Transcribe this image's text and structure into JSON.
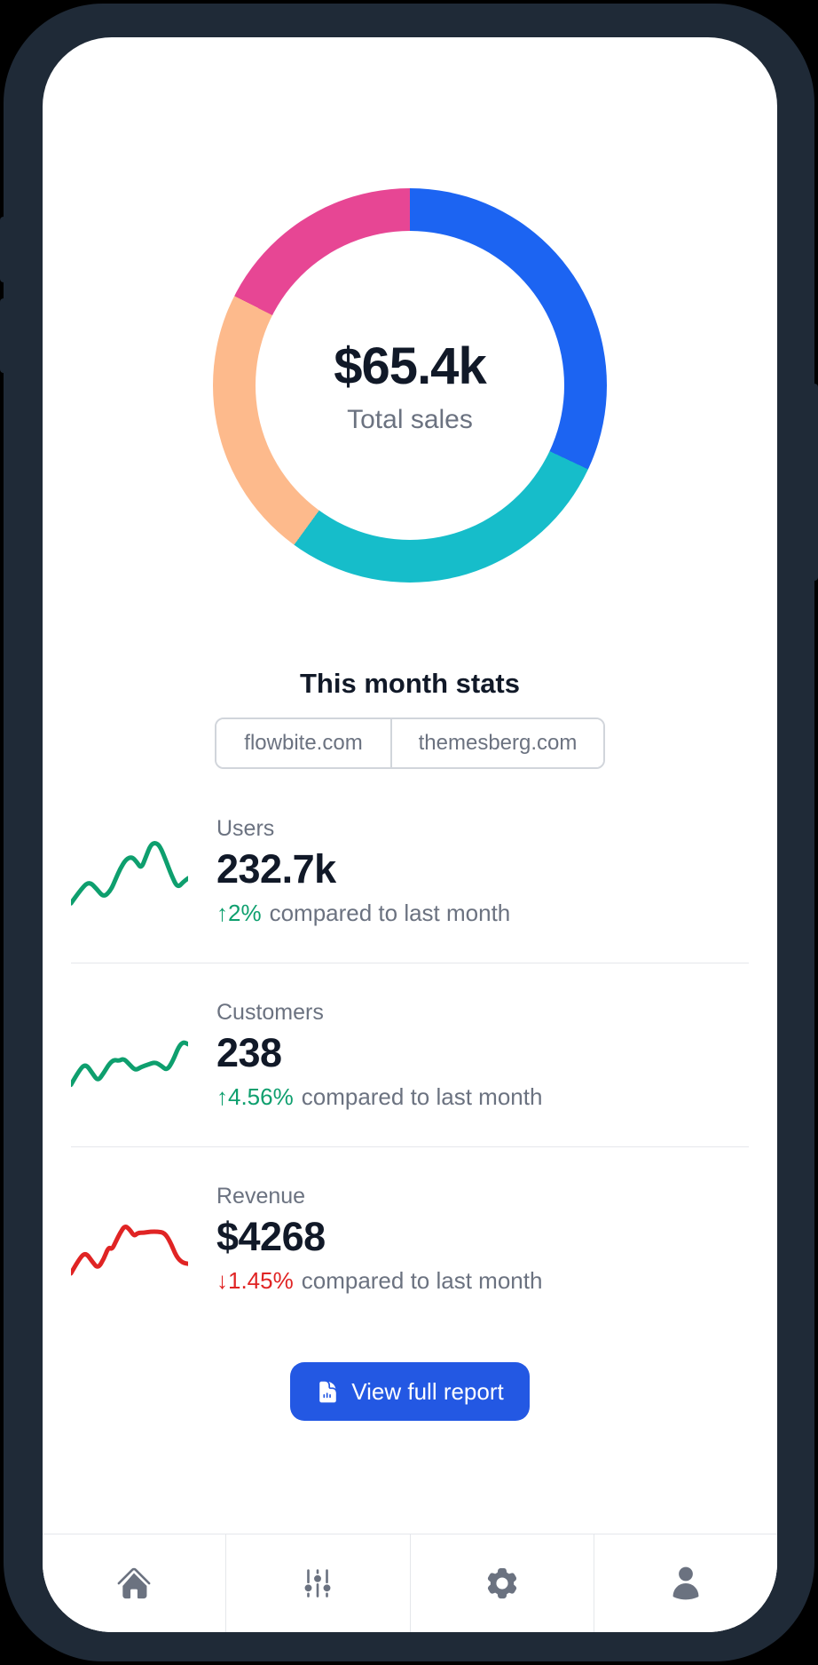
{
  "phone": {
    "frame_color": "#1F2A37",
    "screen_color": "#FFFFFF"
  },
  "donut": {
    "value": "$65.4k",
    "label": "Total sales",
    "segments": [
      {
        "name": "segment-blue",
        "color": "#1C64F2",
        "percent": 32.0
      },
      {
        "name": "segment-teal",
        "color": "#16BDCA",
        "percent": 28.0
      },
      {
        "name": "segment-orange",
        "color": "#FDBA8C",
        "percent": 22.5
      },
      {
        "name": "segment-pink",
        "color": "#E74694",
        "percent": 17.5
      }
    ]
  },
  "stats_section": {
    "title": "This month stats"
  },
  "tabs": [
    {
      "label": "flowbite.com"
    },
    {
      "label": "themesberg.com"
    }
  ],
  "stats": [
    {
      "label": "Users",
      "value": "232.7k",
      "delta_arrow": "↑",
      "delta": "2%",
      "delta_direction": "up",
      "delta_color": "#0E9F6E",
      "compare_text": "compared to last month",
      "line_color": "#0E9F6E",
      "sparkline": [
        [
          0,
          62
        ],
        [
          10,
          48
        ],
        [
          16,
          44
        ],
        [
          22,
          50
        ],
        [
          28,
          57
        ],
        [
          34,
          51
        ],
        [
          38,
          42
        ],
        [
          42,
          33
        ],
        [
          47,
          25
        ],
        [
          52,
          23
        ],
        [
          56,
          27
        ],
        [
          60,
          33
        ],
        [
          64,
          23
        ],
        [
          68,
          13
        ],
        [
          72,
          11
        ],
        [
          76,
          14
        ],
        [
          81,
          26
        ],
        [
          86,
          39
        ],
        [
          91,
          49
        ],
        [
          96,
          44
        ],
        [
          100,
          41
        ]
      ]
    },
    {
      "label": "Customers",
      "value": "238",
      "delta_arrow": "↑",
      "delta": "4.56%",
      "delta_direction": "up",
      "delta_color": "#0E9F6E",
      "compare_text": "compared to last month",
      "line_color": "#0E9F6E",
      "sparkline": [
        [
          0,
          60
        ],
        [
          8,
          46
        ],
        [
          13,
          43
        ],
        [
          18,
          50
        ],
        [
          23,
          57
        ],
        [
          28,
          50
        ],
        [
          33,
          42
        ],
        [
          37,
          39
        ],
        [
          41,
          40
        ],
        [
          45,
          38
        ],
        [
          50,
          43
        ],
        [
          55,
          48
        ],
        [
          60,
          45
        ],
        [
          66,
          43
        ],
        [
          72,
          41
        ],
        [
          77,
          44
        ],
        [
          82,
          48
        ],
        [
          87,
          40
        ],
        [
          92,
          28
        ],
        [
          96,
          24
        ],
        [
          100,
          26
        ]
      ]
    },
    {
      "label": "Revenue",
      "value": "$4268",
      "delta_arrow": "↓",
      "delta": "1.45%",
      "delta_direction": "down",
      "delta_color": "#E02424",
      "compare_text": "compared to last month",
      "line_color": "#E02424",
      "sparkline": [
        [
          0,
          64
        ],
        [
          8,
          50
        ],
        [
          13,
          47
        ],
        [
          18,
          54
        ],
        [
          23,
          60
        ],
        [
          28,
          52
        ],
        [
          32,
          42
        ],
        [
          35,
          44
        ],
        [
          38,
          38
        ],
        [
          42,
          30
        ],
        [
          46,
          24
        ],
        [
          50,
          27
        ],
        [
          54,
          33
        ],
        [
          57,
          30
        ],
        [
          62,
          30
        ],
        [
          68,
          29
        ],
        [
          74,
          29
        ],
        [
          80,
          30
        ],
        [
          85,
          38
        ],
        [
          90,
          50
        ],
        [
          95,
          55
        ],
        [
          100,
          56
        ]
      ]
    }
  ],
  "report_button": {
    "label": "View full report",
    "color": "#2358E3",
    "icon": "document-chart-icon"
  },
  "bottom_nav": [
    {
      "icon": "home-icon"
    },
    {
      "icon": "adjustments-icon"
    },
    {
      "icon": "settings-gear-icon"
    },
    {
      "icon": "profile-user-icon"
    }
  ]
}
